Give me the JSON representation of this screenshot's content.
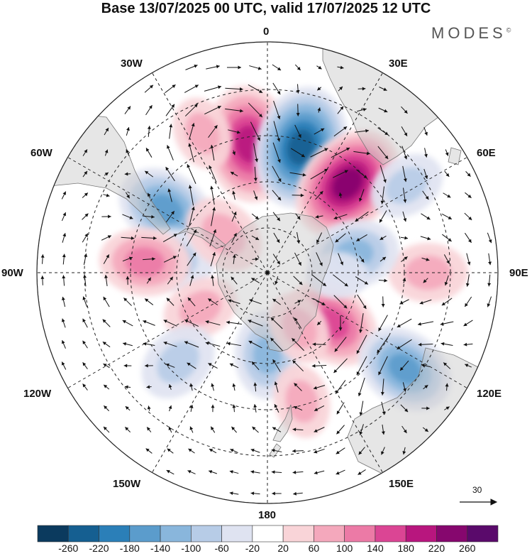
{
  "title": "Base 13/07/2025 00 UTC, valid 17/07/2025 12 UTC",
  "brand": "MODES",
  "brand_mark": "©",
  "longitudes": {
    "lon_0": "0",
    "lon_30e": "30E",
    "lon_60e": "60E",
    "lon_90e": "90E",
    "lon_120e": "120E",
    "lon_150e": "150E",
    "lon_180": "180",
    "lon_150w": "150W",
    "lon_120w": "120W",
    "lon_90w": "90W",
    "lon_60w": "60W",
    "lon_30w": "30W"
  },
  "reference_vector": {
    "label": "30"
  },
  "colorbar": {
    "ticks": [
      "-260",
      "-220",
      "-180",
      "-140",
      "-100",
      "-60",
      "-20",
      "20",
      "60",
      "100",
      "140",
      "180",
      "220",
      "260"
    ],
    "colors": [
      "#0b3a5e",
      "#155f91",
      "#2b7fb8",
      "#5b9ccc",
      "#89b6dc",
      "#b7cce7",
      "#dfe3f1",
      "#ffffff",
      "#f9d4d8",
      "#f4a8bc",
      "#ec7aa6",
      "#db4594",
      "#b8167e",
      "#86076e",
      "#5a0a6b"
    ]
  },
  "map": {
    "projection": "south-polar-stereographic",
    "field": "geopotential height anomaly",
    "anomalies": [
      {
        "lat": -47,
        "lon": -8,
        "value": 210
      },
      {
        "lat": -47,
        "lon": 15,
        "value": -230
      },
      {
        "lat": -50,
        "lon": 42,
        "value": 220
      },
      {
        "lat": -50,
        "lon": -58,
        "value": -150
      },
      {
        "lat": -37,
        "lon": 58,
        "value": -70
      },
      {
        "lat": -38,
        "lon": 90,
        "value": 80
      },
      {
        "lat": -60,
        "lon": 78,
        "value": -120
      },
      {
        "lat": -62,
        "lon": 128,
        "value": 150
      },
      {
        "lat": -36,
        "lon": 125,
        "value": -150
      },
      {
        "lat": -62,
        "lon": 180,
        "value": -110
      },
      {
        "lat": -58,
        "lon": -82,
        "value": -90
      },
      {
        "lat": -49,
        "lon": -85,
        "value": 120
      },
      {
        "lat": -70,
        "lon": -49,
        "value": 95
      },
      {
        "lat": -64,
        "lon": -118,
        "value": 70
      },
      {
        "lat": -48,
        "lon": -135,
        "value": -90
      },
      {
        "lat": -68,
        "lon": 150,
        "value": 60
      },
      {
        "lat": -46,
        "lon": 165,
        "value": 60
      },
      {
        "lat": -40,
        "lon": -25,
        "value": 60
      },
      {
        "lat": -66,
        "lon": 92,
        "value": -20
      }
    ]
  }
}
